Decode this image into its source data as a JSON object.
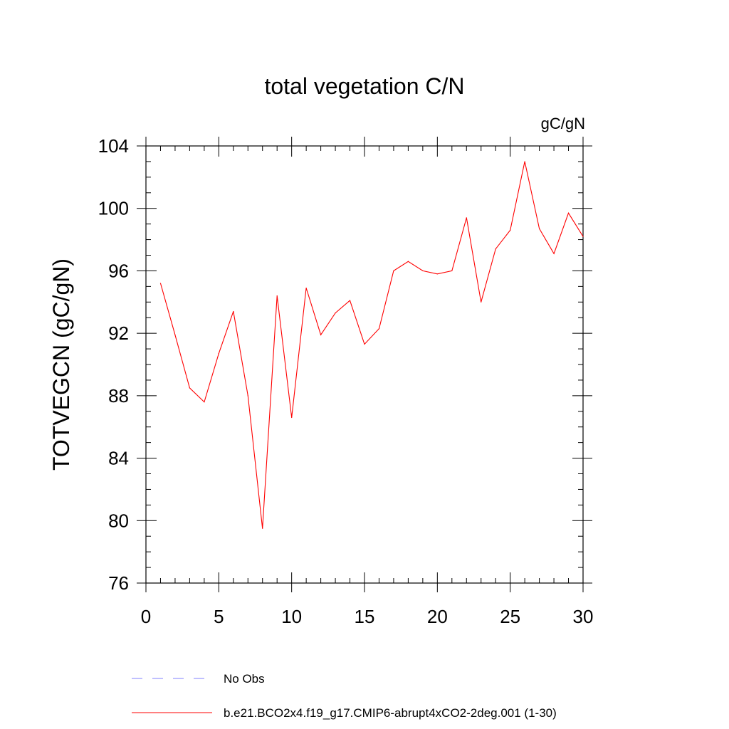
{
  "chart_data": {
    "type": "line",
    "title": "total vegetation C/N",
    "units_label": "gC/gN",
    "ylabel": "TOTVEGCN  (gC/gN)",
    "xlabel": "",
    "xlim": [
      0,
      30
    ],
    "ylim": [
      76,
      104
    ],
    "x_ticks": [
      0,
      5,
      10,
      15,
      20,
      25,
      30
    ],
    "x_tick_labels": [
      "0",
      "5",
      "10",
      "15",
      "20",
      "25",
      "30"
    ],
    "y_ticks": [
      76,
      80,
      84,
      88,
      92,
      96,
      100,
      104
    ],
    "y_tick_labels": [
      "76",
      "80",
      "84",
      "88",
      "92",
      "96",
      "100",
      "104"
    ],
    "grid": false,
    "series": [
      {
        "name": "b.e21.BCO2x4.f19_g17.CMIP6-abrupt4xCO2-2deg.001 (1-30)",
        "color": "#ff0000",
        "style": "solid",
        "x": [
          1,
          2,
          3,
          4,
          5,
          6,
          7,
          8,
          9,
          10,
          11,
          12,
          13,
          14,
          15,
          16,
          17,
          18,
          19,
          20,
          21,
          22,
          23,
          24,
          25,
          26,
          27,
          28,
          29,
          30
        ],
        "values": [
          95.2,
          91.9,
          88.5,
          87.6,
          90.7,
          93.4,
          88.0,
          79.5,
          94.4,
          86.6,
          94.9,
          91.9,
          93.3,
          94.1,
          91.3,
          92.3,
          96.0,
          96.6,
          96.0,
          95.8,
          96.0,
          99.4,
          94.0,
          97.4,
          98.6,
          103.0,
          98.7,
          97.1,
          99.7,
          98.2
        ]
      }
    ],
    "legend": [
      {
        "label": "No Obs",
        "color": "#8080ff",
        "style": "dashed"
      },
      {
        "label": "b.e21.BCO2x4.f19_g17.CMIP6-abrupt4xCO2-2deg.001 (1-30)",
        "color": "#ff0000",
        "style": "solid"
      }
    ],
    "legend_position": "bottom"
  }
}
